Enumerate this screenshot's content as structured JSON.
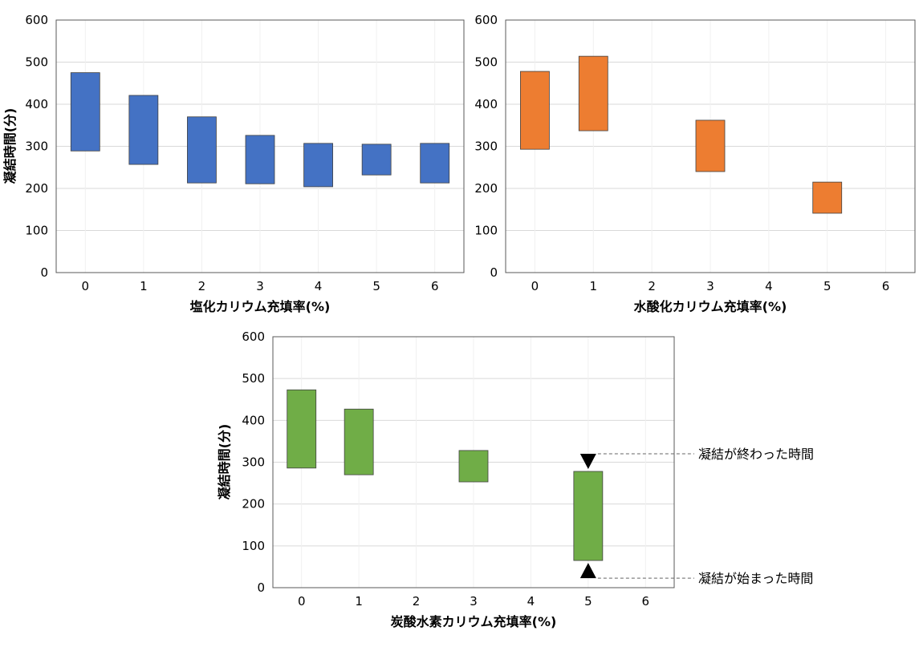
{
  "chart_data": [
    {
      "type": "bar",
      "subtype": "floating",
      "categories": [
        "0",
        "1",
        "2",
        "3",
        "4",
        "5",
        "6"
      ],
      "ranges": [
        [
          289,
          475
        ],
        [
          257,
          421
        ],
        [
          213,
          370
        ],
        [
          211,
          326
        ],
        [
          204,
          307
        ],
        [
          232,
          305
        ],
        [
          213,
          307
        ]
      ],
      "color": "#4472c4",
      "xlabel": "塩化カリウム充填率(%)",
      "ylabel": "凝結時間(分)",
      "ylim": [
        0,
        600
      ],
      "yticks": [
        "0",
        "100",
        "200",
        "300",
        "400",
        "500",
        "600"
      ],
      "grid": true
    },
    {
      "type": "bar",
      "subtype": "floating",
      "categories": [
        "0",
        "1",
        "2",
        "3",
        "4",
        "5",
        "6"
      ],
      "ranges": [
        [
          293,
          478
        ],
        [
          337,
          514
        ],
        null,
        [
          240,
          362
        ],
        null,
        [
          141,
          215
        ],
        null
      ],
      "color": "#ed7d31",
      "xlabel": "水酸化カリウム充填率(%)",
      "ylabel": "",
      "ylim": [
        0,
        600
      ],
      "yticks": [
        "0",
        "100",
        "200",
        "300",
        "400",
        "500",
        "600"
      ],
      "grid": true
    },
    {
      "type": "bar",
      "subtype": "floating",
      "categories": [
        "0",
        "1",
        "2",
        "3",
        "4",
        "5",
        "6"
      ],
      "ranges": [
        [
          286,
          473
        ],
        [
          270,
          427
        ],
        null,
        [
          253,
          328
        ],
        null,
        [
          65,
          278
        ],
        null
      ],
      "color": "#70ad47",
      "xlabel": "炭酸水素カリウム充填率(%)",
      "ylabel": "凝結時間(分)",
      "ylim": [
        0,
        600
      ],
      "yticks": [
        "0",
        "100",
        "200",
        "300",
        "400",
        "500",
        "600"
      ],
      "grid": true,
      "annotations": {
        "end": "凝結が終わった時間",
        "start": "凝結が始まった時間"
      }
    }
  ]
}
